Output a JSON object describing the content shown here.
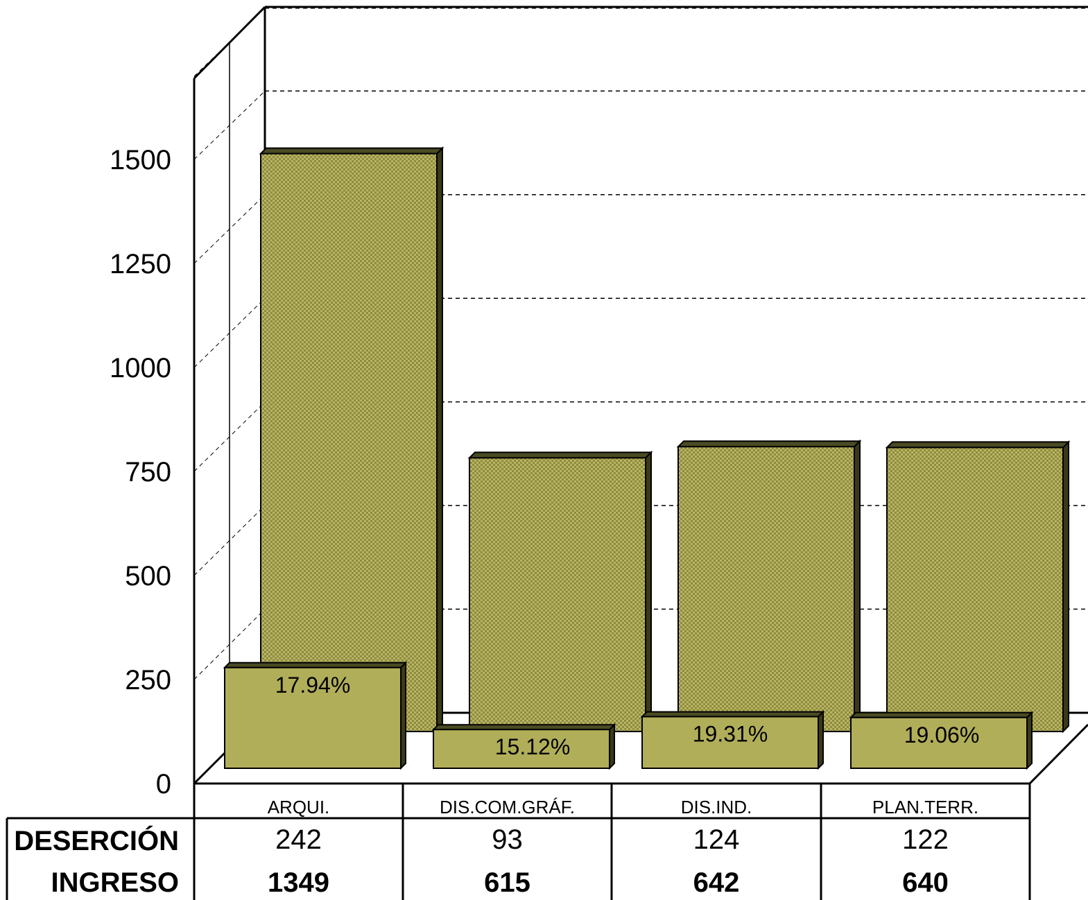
{
  "chart_data": {
    "type": "bar",
    "categories": [
      "ARQUI.",
      "DIS.COM.GRÁF.",
      "DIS.IND.",
      "PLAN.TERR."
    ],
    "series": [
      {
        "name": "DESERCIÓN",
        "values": [
          242,
          93,
          124,
          122
        ]
      },
      {
        "name": "INGRESO",
        "values": [
          1349,
          615,
          642,
          640
        ]
      }
    ],
    "percent_labels": [
      "17.94%",
      "15.12%",
      "19.31%",
      "19.06%"
    ],
    "y_ticks": [
      "0",
      "250",
      "500",
      "750",
      "1000",
      "1250",
      "1500"
    ],
    "ylim": [
      0,
      1750
    ],
    "grid": true,
    "legend": "data table below chart",
    "colors": {
      "bar": "#b1ae5a",
      "bar_pattern": "#9a9640",
      "edge": "#000000"
    }
  }
}
